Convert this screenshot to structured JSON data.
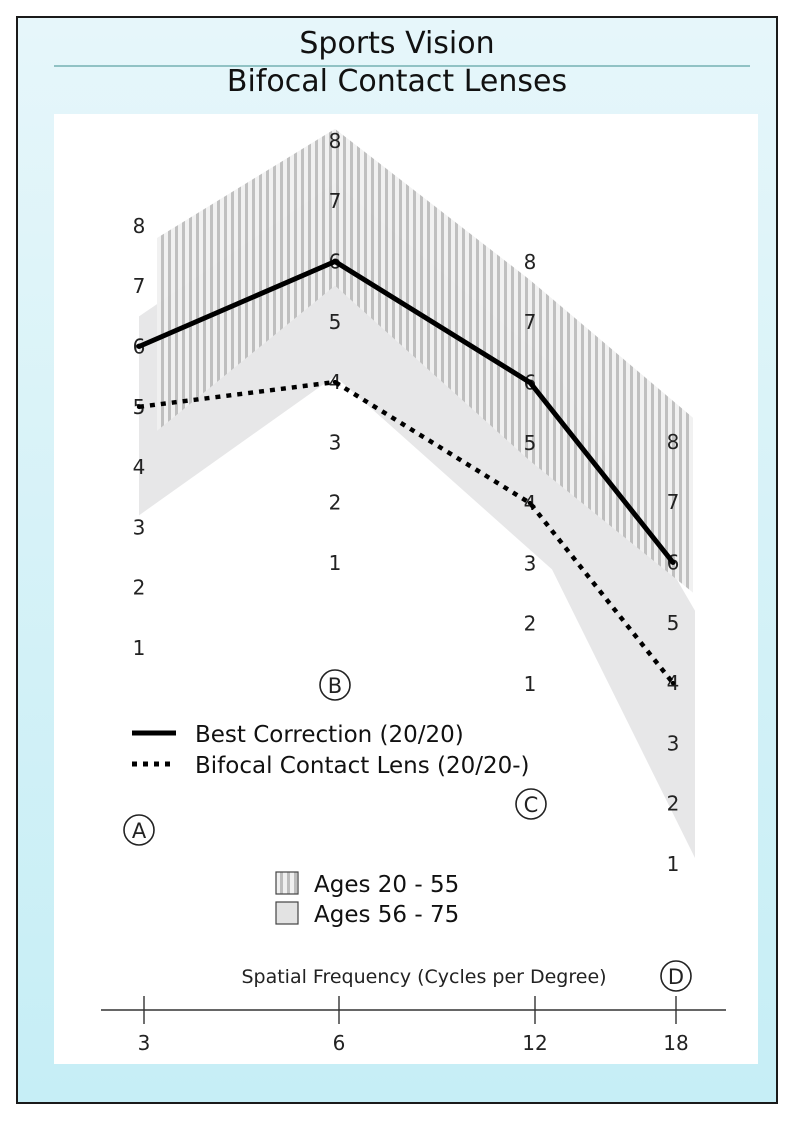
{
  "title_top": "Sports Vision",
  "title_bottom": "Bifocal Contact Lenses",
  "chart_data": {
    "type": "line",
    "x": [
      3,
      6,
      12,
      18
    ],
    "xlabel": "Spatial Frequency (Cycles per Degree)",
    "x_tick_labels": [
      "3",
      "6",
      "12",
      "18"
    ],
    "column_markers": [
      "A",
      "B",
      "C",
      "D"
    ],
    "column_scale": [
      "1",
      "2",
      "3",
      "4",
      "5",
      "6",
      "7",
      "8"
    ],
    "series": [
      {
        "name": "Best Correction (20/20)",
        "style": "solid",
        "values": [
          6,
          6,
          6,
          6
        ]
      },
      {
        "name": "Bifocal Contact Lens (20/20-)",
        "style": "dotted",
        "values": [
          5,
          4,
          4,
          4
        ]
      }
    ],
    "bands": [
      {
        "name": "Ages 20 - 55",
        "fill": "striped-gray",
        "ranges": [
          [
            4.6,
            7.8
          ],
          [
            5.6,
            8.2
          ],
          [
            4.7,
            7.7
          ],
          [
            5.5,
            8.4
          ]
        ]
      },
      {
        "name": "Ages 56 - 75",
        "fill": "light-gray",
        "ranges": [
          [
            3.2,
            6.5
          ],
          [
            4.1,
            7.3
          ],
          [
            2.9,
            6.3
          ],
          [
            1.1,
            5.2
          ]
        ]
      }
    ],
    "ylim": [
      0.5,
      8.5
    ],
    "grid": false,
    "legend_position": "left"
  }
}
